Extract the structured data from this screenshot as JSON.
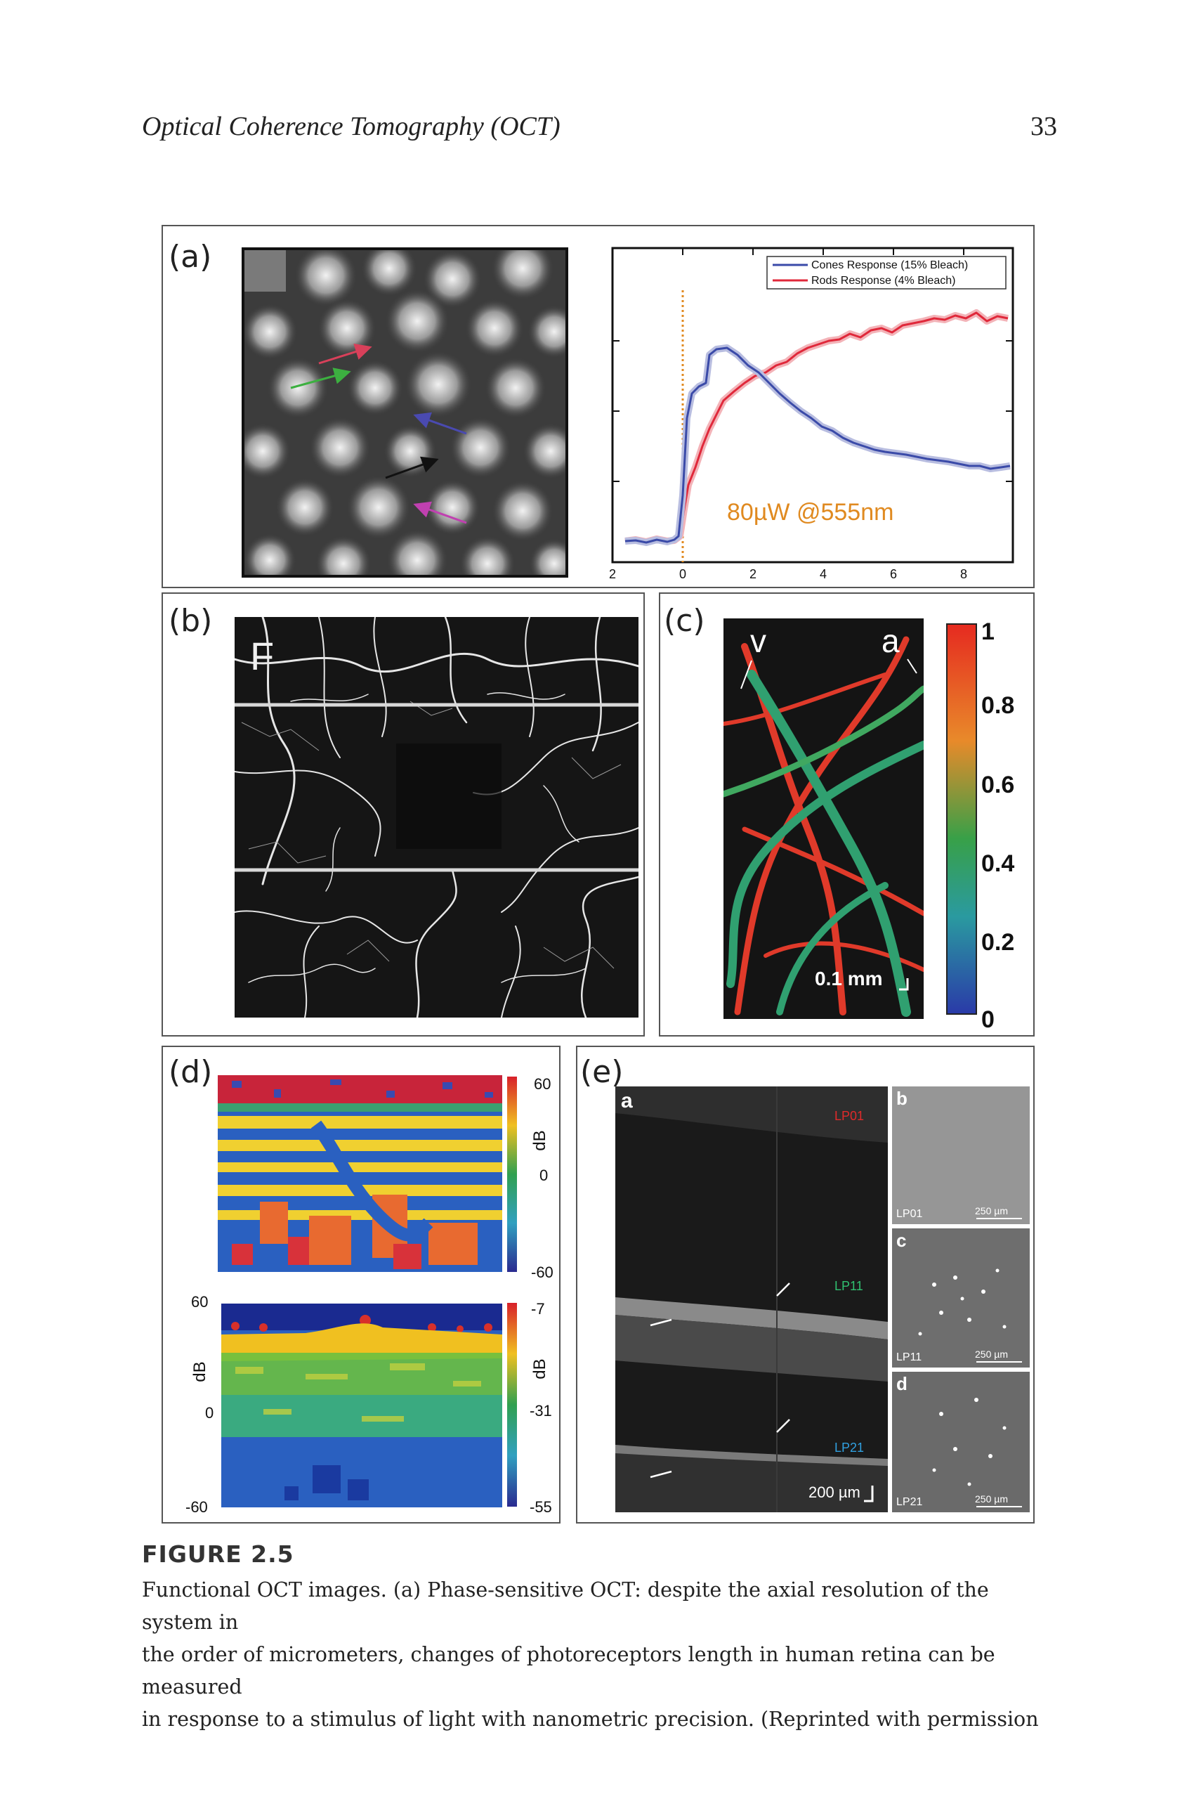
{
  "header": {
    "running_title": "Optical Coherence Tomography (OCT)",
    "page_number": "33"
  },
  "panels": {
    "a": {
      "letter": "(a)",
      "annotation": "80µW @555nm",
      "legend": [
        "Cones Response (15% Bleach)",
        "Rods Response (4% Bleach)"
      ],
      "x_ticks": [
        "2",
        "0",
        "2",
        "4",
        "6",
        "8"
      ]
    },
    "b": {
      "letter": "(b)",
      "inset_letter": "F"
    },
    "c": {
      "letter": "(c)",
      "vessel_labels": [
        "v",
        "a"
      ],
      "scale_bar": "0.1 mm",
      "colorbar_ticks": [
        "1",
        "0.8",
        "0.6",
        "0.4",
        "0.2",
        "0"
      ]
    },
    "d": {
      "letter": "(d)",
      "top_colorbar": {
        "ticks": [
          "60",
          "0",
          "-60"
        ],
        "unit": "dB"
      },
      "bottom_colorbar": {
        "ticks": [
          "-7",
          "-31",
          "-55"
        ],
        "unit": "dB"
      },
      "left_axis": {
        "ticks": [
          "60",
          "0",
          "-60"
        ],
        "unit": "dB"
      }
    },
    "e": {
      "letter": "(e)",
      "sub_a": "a",
      "sub_b": "b",
      "sub_c": "c",
      "sub_d": "d",
      "lp_labels": [
        "LP01",
        "LP11",
        "LP21"
      ],
      "scale_main": "200 µm",
      "scale_small": "250 µm"
    }
  },
  "caption": {
    "title": "FIGURE 2.5",
    "lines": [
      "Functional OCT images. (a) Phase-sensitive OCT: despite the axial resolution of the system in",
      "the order of micrometers, changes of photoreceptors length in human retina can be measured",
      "in response to a stimulus of light with nanometric precision. (Reprinted with permission"
    ]
  },
  "colors": {
    "cones": "#3a4aa8",
    "rods": "#e0283a",
    "stimulus": "#e08a20",
    "border": "#555555"
  }
}
